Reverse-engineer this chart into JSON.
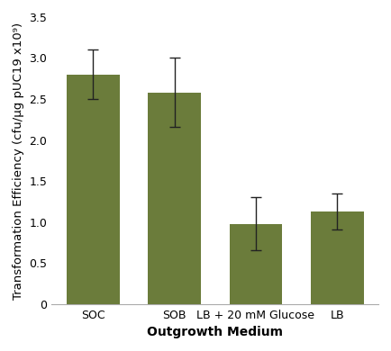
{
  "categories": [
    "SOC",
    "SOB",
    "LB + 20 mM Glucose",
    "LB"
  ],
  "values": [
    2.8,
    2.58,
    0.98,
    1.13
  ],
  "errors": [
    0.3,
    0.42,
    0.32,
    0.22
  ],
  "bar_color": "#6b7c3b",
  "bar_edgecolor": "#6b7c3b",
  "error_color": "#222222",
  "ylabel": "Transformation Efficiency (cfu/µg pUC19 x10⁹)",
  "xlabel": "Outgrowth Medium",
  "ylim": [
    0,
    3.5
  ],
  "yticks": [
    0,
    0.5,
    1.0,
    1.5,
    2.0,
    2.5,
    3.0,
    3.5
  ],
  "bar_width": 0.65,
  "capsize": 4,
  "label_fontsize": 9.5,
  "tick_fontsize": 9,
  "xlabel_fontsize": 10,
  "background_color": "#ffffff",
  "spine_color": "#aaaaaa"
}
